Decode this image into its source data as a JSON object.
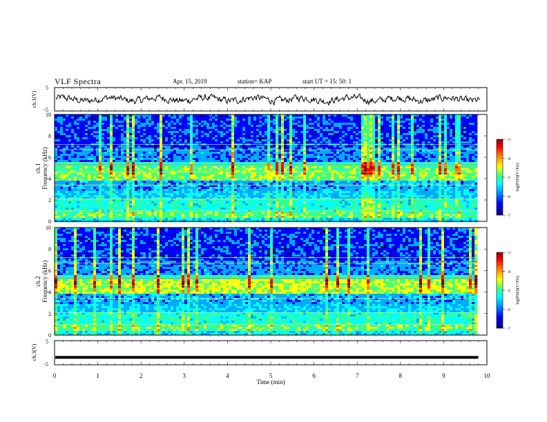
{
  "header": {
    "title": "VLF Spectra",
    "date": "Apr. 15, 2019",
    "station": "station= KAP",
    "start": "start  UT =   15: 50: 1"
  },
  "colors": {
    "waveform": "#000000",
    "colormap": [
      "#000080",
      "#0000ff",
      "#00aaff",
      "#00ffff",
      "#40ff80",
      "#ffff00",
      "#ff8000",
      "#ff0000",
      "#800000"
    ]
  },
  "chart_data": [
    {
      "type": "line",
      "name": "ch1-waveform",
      "ylabel": "ch.1(V)",
      "ylim": [
        -5,
        5
      ],
      "yticks": [
        "5",
        "-5"
      ],
      "xlim": [
        0,
        10
      ],
      "signal": "noisy waveform fluctuating roughly between -2 and 2 V"
    },
    {
      "type": "heatmap",
      "name": "ch1-spectrogram",
      "ylabel": "ch.1 Frequency (kHz)",
      "ylim": [
        0,
        10
      ],
      "yticks": [
        "0",
        "2",
        "4",
        "6",
        "8",
        "10"
      ],
      "xlim": [
        0,
        9.8
      ],
      "colorbar": {
        "label": "log(PSD)(V²/Hz)",
        "ticks": [
          "-3",
          "-4",
          "-5",
          "-6",
          "-7"
        ],
        "range": [
          -7,
          -3
        ]
      }
    },
    {
      "type": "heatmap",
      "name": "ch2-spectrogram",
      "ylabel": "ch.2 Frequency (kHz)",
      "ylim": [
        0,
        10
      ],
      "yticks": [
        "0",
        "2",
        "4",
        "6",
        "8",
        "10"
      ],
      "xlim": [
        0,
        9.8
      ],
      "colorbar": {
        "label": "log(PSD)(V²/Hz)",
        "ticks": [
          "-3",
          "-4",
          "-5",
          "-6",
          "-7"
        ],
        "range": [
          -7,
          -3
        ]
      }
    },
    {
      "type": "line",
      "name": "ch3-signal",
      "ylabel": "ch.3(V)",
      "ylim": [
        -5,
        5
      ],
      "yticks": [
        "5",
        "-5"
      ],
      "values_constant": -2,
      "xlim": [
        0,
        9.8
      ]
    }
  ],
  "xaxis": {
    "label": "Time  (min)",
    "ticks": [
      "0",
      "1",
      "2",
      "3",
      "4",
      "5",
      "6",
      "7",
      "8",
      "9",
      "10"
    ]
  }
}
